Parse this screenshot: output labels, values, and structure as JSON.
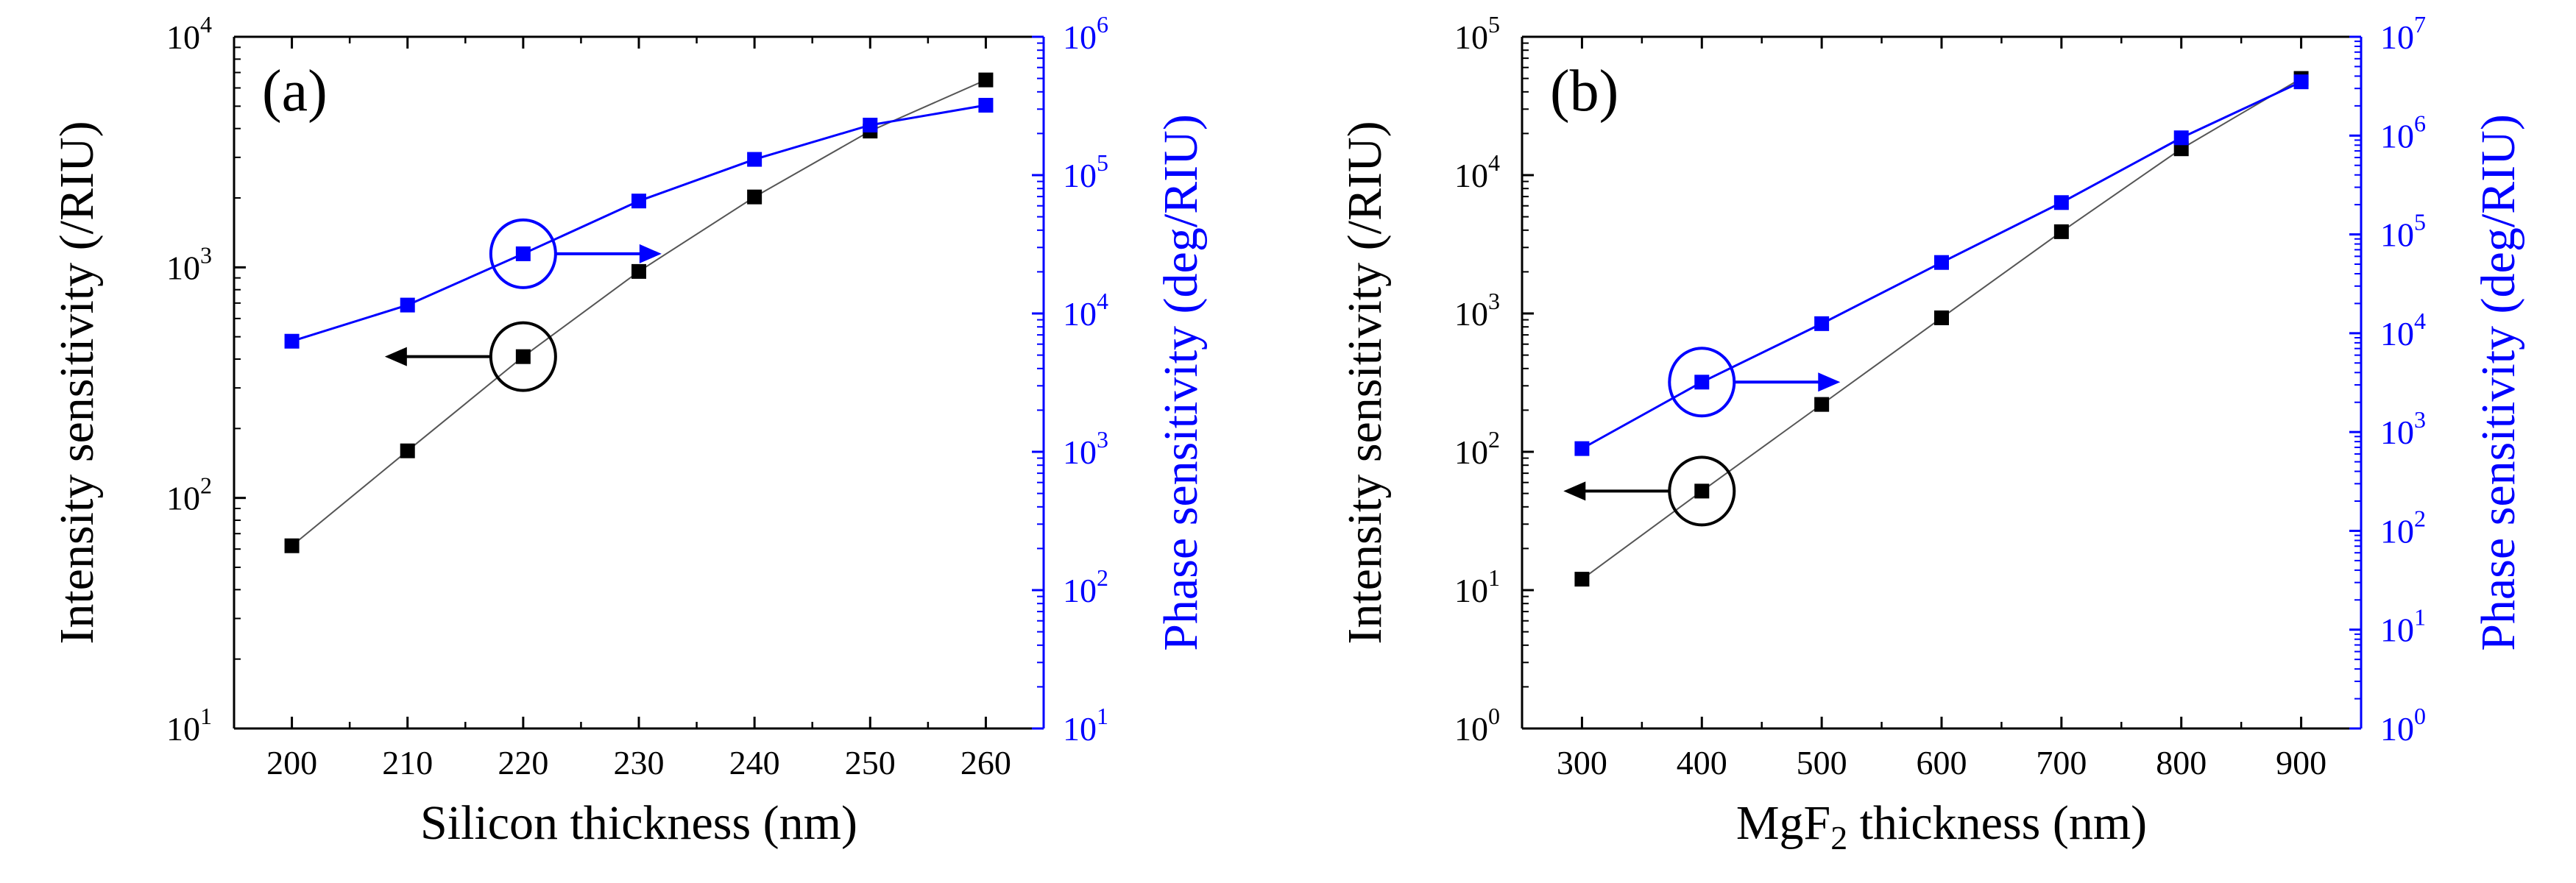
{
  "chart_data": [
    {
      "type": "line",
      "panel_label": "(a)",
      "xlabel": "Silicon thickness (nm)",
      "x": [
        200,
        210,
        220,
        230,
        240,
        250,
        260
      ],
      "xticks": [
        "200",
        "210",
        "220",
        "230",
        "240",
        "250",
        "260"
      ],
      "xlim": [
        195,
        265
      ],
      "left_axis": {
        "label": "Intensity sensitivity (/RIU)",
        "scale": "log",
        "ylim": [
          10,
          10000
        ],
        "tick_bases": [
          "10",
          "10",
          "10",
          "10"
        ],
        "tick_exponents": [
          "1",
          "2",
          "3",
          "4"
        ],
        "color": "#000000"
      },
      "right_axis": {
        "label": "Phase sensitivity (deg/RIU)",
        "scale": "log",
        "ylim": [
          10,
          1000000
        ],
        "tick_bases": [
          "10",
          "10",
          "10",
          "10",
          "10",
          "10"
        ],
        "tick_exponents": [
          "1",
          "2",
          "3",
          "4",
          "5",
          "6"
        ],
        "color": "#0000ff"
      },
      "series": [
        {
          "name": "Intensity sensitivity",
          "axis": "left",
          "color": "#000000",
          "values": [
            62,
            160,
            410,
            960,
            2020,
            3900,
            6500
          ]
        },
        {
          "name": "Phase sensitivity",
          "axis": "right",
          "color": "#0000ff",
          "values": [
            6300,
            11500,
            27000,
            65000,
            130000,
            230000,
            320000
          ]
        }
      ],
      "annotations": [
        {
          "series": "Phase sensitivity",
          "x": 220,
          "arrow": "right"
        },
        {
          "series": "Intensity sensitivity",
          "x": 220,
          "arrow": "left"
        }
      ]
    },
    {
      "type": "line",
      "panel_label": "(b)",
      "xlabel_parts": [
        "MgF",
        "2",
        " thickness (nm)"
      ],
      "x": [
        300,
        400,
        500,
        600,
        700,
        800,
        900
      ],
      "xticks": [
        "300",
        "400",
        "500",
        "600",
        "700",
        "800",
        "900"
      ],
      "xlim": [
        250,
        950
      ],
      "left_axis": {
        "label": "Intensity sensitivity (/RIU)",
        "scale": "log",
        "ylim": [
          1,
          100000
        ],
        "tick_bases": [
          "10",
          "10",
          "10",
          "10",
          "10",
          "10"
        ],
        "tick_exponents": [
          "0",
          "1",
          "2",
          "3",
          "4",
          "5"
        ],
        "color": "#000000"
      },
      "right_axis": {
        "label": "Phase sensitivity (deg/RIU)",
        "scale": "log",
        "ylim": [
          1,
          10000000
        ],
        "tick_bases": [
          "10",
          "10",
          "10",
          "10",
          "10",
          "10",
          "10",
          "10"
        ],
        "tick_exponents": [
          "0",
          "1",
          "2",
          "3",
          "4",
          "5",
          "6",
          "7"
        ],
        "color": "#0000ff"
      },
      "series": [
        {
          "name": "Intensity sensitivity",
          "axis": "left",
          "color": "#000000",
          "values": [
            12,
            52,
            220,
            930,
            3900,
            15500,
            50000
          ]
        },
        {
          "name": "Phase sensitivity",
          "axis": "right",
          "color": "#0000ff",
          "values": [
            680,
            3200,
            12500,
            52000,
            210000,
            950000,
            3500000
          ]
        }
      ],
      "annotations": [
        {
          "series": "Phase sensitivity",
          "x": 400,
          "arrow": "right"
        },
        {
          "series": "Intensity sensitivity",
          "x": 400,
          "arrow": "left"
        }
      ]
    }
  ]
}
